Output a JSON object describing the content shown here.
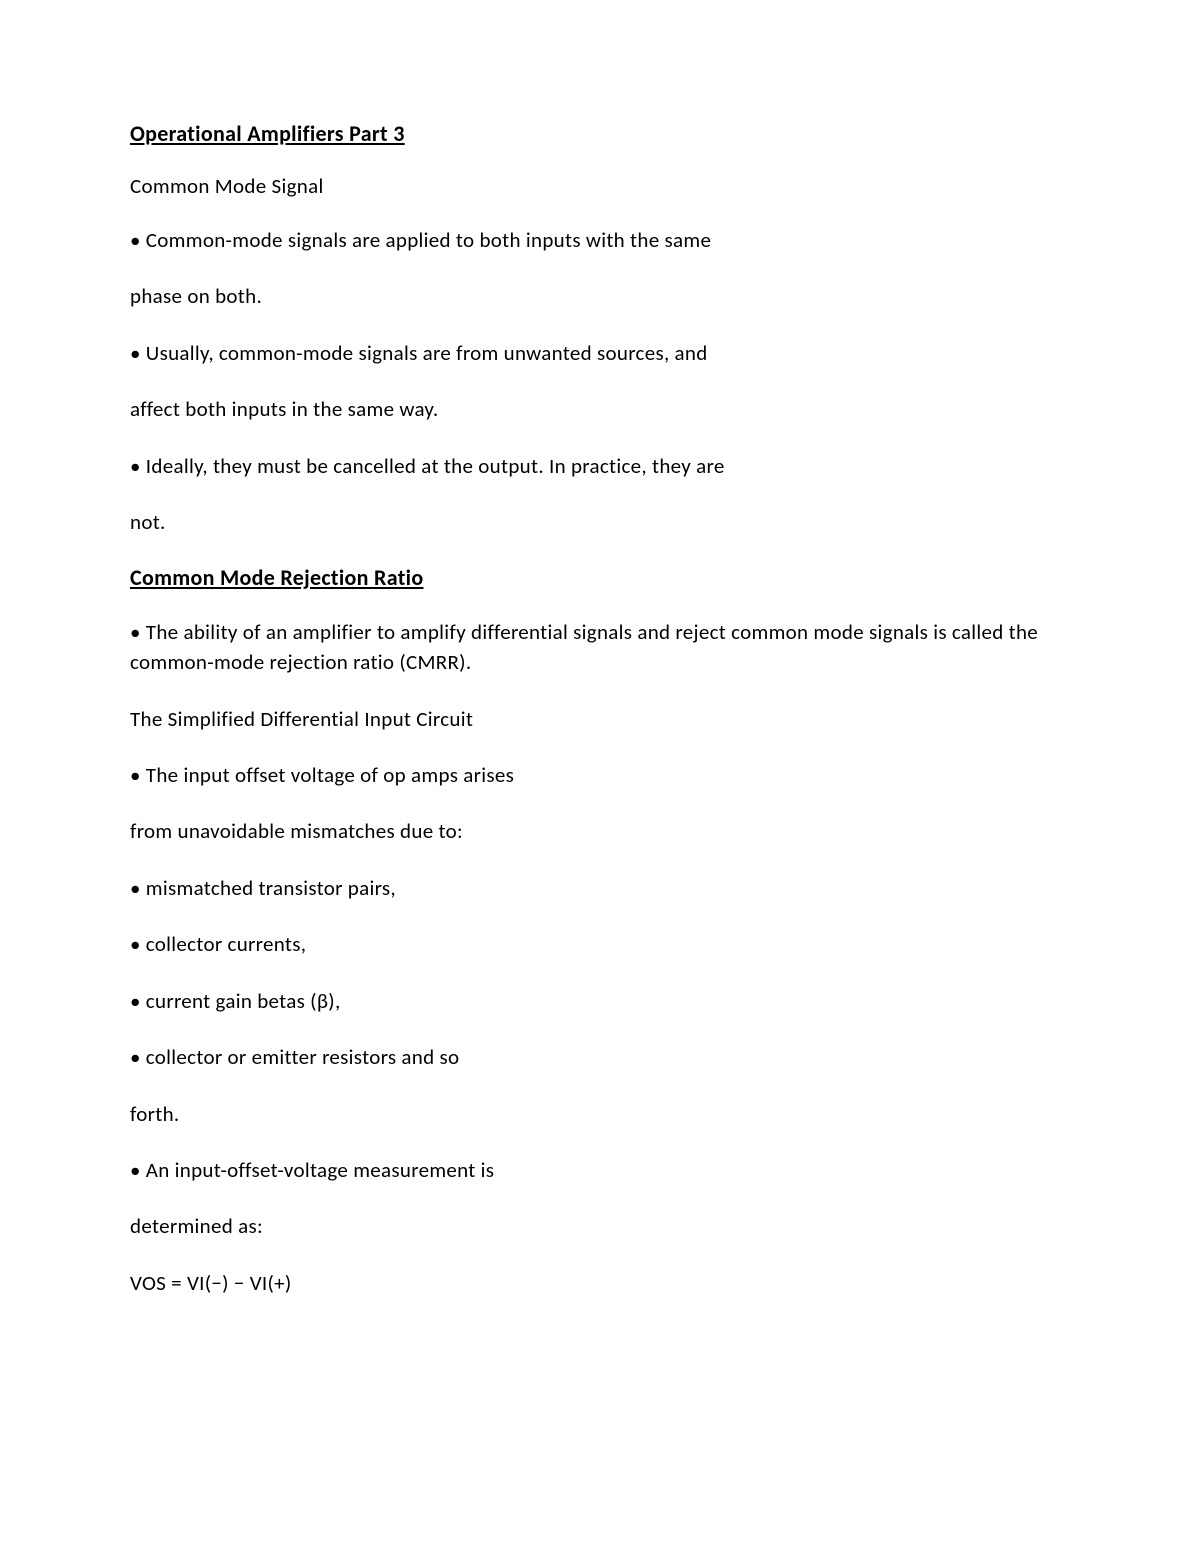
{
  "title": "Operational Amplifiers Part 3",
  "sections": {
    "common_mode_signal": {
      "heading": "Common Mode Signal",
      "paras": [
        "• Common-mode signals are applied to both inputs with the same",
        "phase on both.",
        "• Usually, common-mode signals are from unwanted sources, and",
        "affect both inputs in the same way.",
        "• Ideally, they must be cancelled at the output. In practice, they are",
        "not."
      ]
    },
    "cmrr": {
      "heading": "Common Mode Rejection Ratio",
      "paras": [
        "• The ability of an amplifier to amplify differential signals and reject common mode signals is called the common-mode rejection ratio (CMRR).",
        "The Simplified Differential Input Circuit",
        "• The input offset voltage of op amps arises",
        "from unavoidable mismatches due to:",
        "• mismatched transistor pairs,",
        "• collector currents,",
        "• current gain betas (β),",
        "• collector or emitter resistors and so",
        "forth.",
        "• An input-offset-voltage measurement is",
        "determined as:",
        "VOS = VI(−) − VI(+)"
      ]
    }
  }
}
